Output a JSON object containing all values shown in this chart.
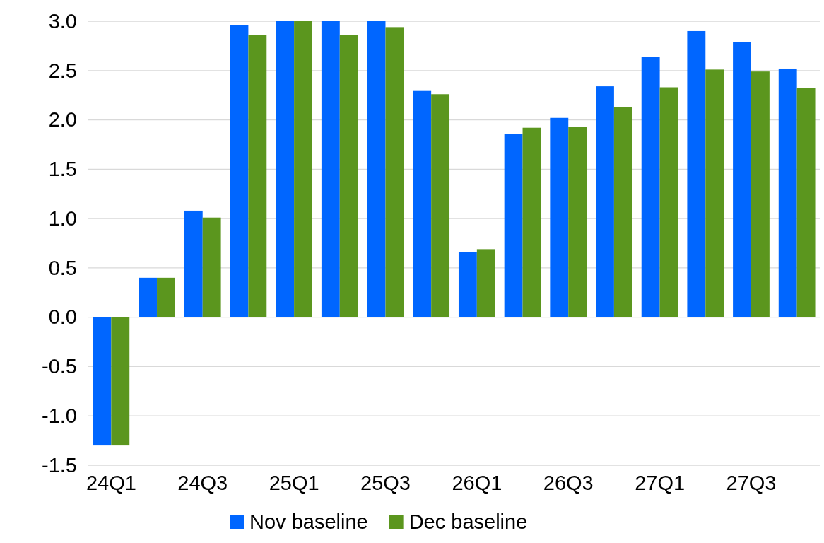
{
  "chart_data": {
    "type": "bar",
    "categories": [
      "24Q1",
      null,
      "24Q3",
      null,
      "25Q1",
      null,
      "25Q3",
      null,
      "26Q1",
      null,
      "26Q3",
      null,
      "27Q1",
      null,
      "27Q3",
      null
    ],
    "series": [
      {
        "name": "Nov baseline",
        "color": "#0066ff",
        "values": [
          -1.3,
          0.4,
          1.08,
          2.96,
          3.0,
          3.0,
          3.0,
          2.3,
          0.66,
          1.86,
          2.02,
          2.34,
          2.64,
          2.9,
          2.79,
          2.52
        ]
      },
      {
        "name": "Dec baseline",
        "color": "#5b961e",
        "values": [
          -1.3,
          0.4,
          1.01,
          2.86,
          3.0,
          2.86,
          2.94,
          2.26,
          0.69,
          1.92,
          1.93,
          2.13,
          2.33,
          2.51,
          2.49,
          2.32
        ]
      }
    ],
    "ylim": [
      -1.5,
      3.0
    ],
    "yticks": [
      {
        "value": -1.5,
        "label": "-1.5"
      },
      {
        "value": -1.0,
        "label": "-1.0"
      },
      {
        "value": -0.5,
        "label": "-0.5"
      },
      {
        "value": 0,
        "label": "0.0"
      },
      {
        "value": 0.5,
        "label": "0.5"
      },
      {
        "value": 1.0,
        "label": "1.0"
      },
      {
        "value": 1.5,
        "label": "1.5"
      },
      {
        "value": 2.0,
        "label": "2.0"
      },
      {
        "value": 2.5,
        "label": "2.5"
      },
      {
        "value": 3.0,
        "label": "3.0"
      }
    ],
    "grid": "y",
    "legend": "bottom"
  }
}
